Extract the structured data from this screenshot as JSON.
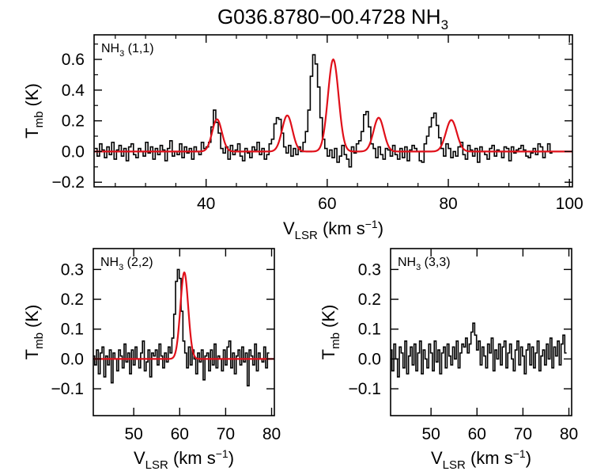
{
  "figure": {
    "title_main": "G036.8780−00.4728 NH",
    "title_sub": "3"
  },
  "chart_data": [
    {
      "type": "line",
      "panel_label": {
        "main": "NH",
        "sub": "3",
        "rest": " (1,1)"
      },
      "xlabel": {
        "main": "V",
        "sub": "LSR",
        "rest": " (km s",
        "sup": "−1",
        "end": ")"
      },
      "ylabel": {
        "main": "T",
        "sub": "mb",
        "rest": " (K)"
      },
      "xlim": [
        21.5,
        100.5
      ],
      "ylim": [
        -0.23,
        0.76
      ],
      "xticks": [
        40,
        60,
        80,
        100
      ],
      "xtick_labels": [
        "40",
        "60",
        "80",
        "100"
      ],
      "yticks": [
        -0.2,
        0.0,
        0.2,
        0.4,
        0.6
      ],
      "ytick_labels": [
        "−0.2",
        "0.0",
        "0.2",
        "0.4",
        "0.6"
      ],
      "minor_x": [
        25,
        30,
        35,
        45,
        50,
        55,
        65,
        70,
        75,
        85,
        90,
        95
      ],
      "minor_y": [
        -0.1,
        0.1,
        0.3,
        0.5,
        0.7
      ],
      "series": [
        {
          "name": "observed spectrum",
          "color": "#000000",
          "style": "step",
          "x0": 21.8,
          "dx": 0.4,
          "values": [
            0.02,
            -0.03,
            0.05,
            0.01,
            -0.04,
            0.03,
            -0.02,
            0.06,
            -0.05,
            0.01,
            0.04,
            -0.03,
            0.02,
            -0.06,
            0.03,
            0.05,
            -0.02,
            -0.04,
            0.02,
            0.0,
            -0.03,
            0.06,
            -0.01,
            0.03,
            -0.05,
            0.02,
            -0.02,
            0.04,
            0.01,
            -0.06,
            0.02,
            0.07,
            -0.03,
            0.0,
            -0.02,
            0.05,
            -0.04,
            0.03,
            -0.01,
            0.02,
            -0.05,
            0.03,
            0.0,
            -0.02,
            0.06,
            0.02,
            0.03,
            0.06,
            0.16,
            0.27,
            0.19,
            0.12,
            0.02,
            -0.01,
            0.03,
            -0.05,
            0.04,
            -0.02,
            0.01,
            0.05,
            -0.03,
            -0.06,
            0.02,
            -0.01,
            -0.04,
            0.03,
            0.01,
            0.06,
            -0.02,
            0.02,
            -0.05,
            -0.02,
            0.05,
            0.08,
            0.18,
            0.22,
            0.21,
            0.12,
            0.03,
            -0.01,
            0.04,
            -0.03,
            0.02,
            -0.02,
            0.03,
            0.0,
            0.06,
            0.13,
            0.27,
            0.49,
            0.63,
            0.57,
            0.42,
            0.22,
            0.08,
            0.02,
            -0.03,
            0.01,
            -0.04,
            0.02,
            -0.07,
            -0.03,
            0.04,
            -0.02,
            -0.05,
            -0.1,
            0.03,
            -0.01,
            0.05,
            0.07,
            0.13,
            0.24,
            0.26,
            0.16,
            0.05,
            0.02,
            -0.04,
            0.03,
            -0.02,
            -0.05,
            0.02,
            0.01,
            -0.03,
            0.04,
            -0.02,
            -0.05,
            0.02,
            -0.04,
            0.03,
            -0.06,
            0.01,
            0.04,
            0.02,
            0.0,
            -0.06,
            -0.07,
            0.05,
            0.1,
            0.16,
            0.22,
            0.25,
            0.17,
            0.09,
            0.02,
            -0.03,
            0.05,
            0.02,
            -0.04,
            0.0,
            -0.03,
            0.03,
            0.06,
            -0.02,
            -0.05,
            0.04,
            0.01,
            -0.03,
            0.02,
            -0.07,
            0.03,
            0.0,
            -0.02,
            -0.05,
            0.02,
            0.04,
            -0.03,
            0.01,
            0.0,
            -0.04,
            0.03,
            0.02,
            -0.06,
            0.03,
            -0.01,
            0.01,
            0.02,
            0.04,
            0.01,
            -0.03,
            -0.04,
            -0.01,
            0.02,
            -0.02,
            0.05,
            0.03,
            -0.04,
            0.0,
            0.05,
            -0.01
          ]
        },
        {
          "name": "hyperfine fit",
          "color": "#e0101a",
          "style": "gauss",
          "components": [
            [
              41.8,
              0.21,
              0.8
            ],
            [
              53.4,
              0.235,
              0.85
            ],
            [
              61.0,
              0.6,
              0.88
            ],
            [
              68.5,
              0.22,
              0.85
            ],
            [
              80.5,
              0.205,
              0.9
            ]
          ]
        }
      ]
    },
    {
      "type": "line",
      "panel_label": {
        "main": "NH",
        "sub": "3",
        "rest": " (2,2)"
      },
      "xlabel": {
        "main": "V",
        "sub": "LSR",
        "rest": " (km s",
        "sup": "−1",
        "end": ")"
      },
      "ylabel": {
        "main": "T",
        "sub": "mb",
        "rest": " (K)"
      },
      "xlim": [
        41.2,
        80.6
      ],
      "ylim": [
        -0.19,
        0.37
      ],
      "xticks": [
        50,
        60,
        70,
        80
      ],
      "xtick_labels": [
        "50",
        "60",
        "70",
        "80"
      ],
      "yticks": [
        -0.1,
        0.0,
        0.1,
        0.2,
        0.3
      ],
      "ytick_labels": [
        "−0.1",
        "0.0",
        "0.1",
        "0.2",
        "0.3"
      ],
      "series": [
        {
          "name": "observed spectrum",
          "color": "#000000",
          "style": "step",
          "x0": 41.3,
          "dx": 0.4,
          "values": [
            0.01,
            -0.02,
            0.03,
            -0.05,
            0.02,
            0.04,
            -0.06,
            0.01,
            -0.02,
            0.03,
            -0.08,
            0.02,
            0.0,
            -0.04,
            0.03,
            0.01,
            -0.03,
            0.05,
            -0.01,
            0.02,
            -0.05,
            0.03,
            -0.02,
            0.04,
            0.0,
            -0.03,
            0.02,
            0.06,
            -0.04,
            -0.01,
            0.03,
            -0.06,
            0.02,
            0.01,
            0.03,
            -0.02,
            0.05,
            0.01,
            -0.03,
            0.02,
            -0.01,
            0.04,
            0.02,
            0.07,
            0.15,
            0.26,
            0.3,
            0.27,
            0.16,
            0.06,
            0.02,
            -0.03,
            0.04,
            -0.02,
            0.03,
            0.0,
            -0.05,
            0.02,
            -0.01,
            0.03,
            -0.07,
            0.01,
            0.02,
            -0.04,
            0.03,
            -0.02,
            0.05,
            -0.03,
            0.01,
            0.0,
            -0.04,
            0.03,
            -0.02,
            0.04,
            0.06,
            -0.03,
            0.02,
            -0.05,
            0.01,
            0.03,
            -0.02,
            0.04,
            -0.01,
            0.02,
            -0.09,
            0.03,
            0.01,
            -0.02,
            0.05,
            -0.04,
            0.02,
            0.0,
            -0.01,
            0.04,
            -0.03,
            0.02
          ]
        },
        {
          "name": "gaussian fit",
          "color": "#e0101a",
          "style": "gauss",
          "components": [
            [
              61.0,
              0.29,
              0.85
            ]
          ]
        }
      ]
    },
    {
      "type": "line",
      "panel_label": {
        "main": "NH",
        "sub": "3",
        "rest": " (3,3)"
      },
      "xlabel": {
        "main": "V",
        "sub": "LSR",
        "rest": " (km s",
        "sup": "−1",
        "end": ")"
      },
      "ylabel": {
        "main": "T",
        "sub": "mb",
        "rest": " (K)"
      },
      "xlim": [
        41.2,
        80.6
      ],
      "ylim": [
        -0.19,
        0.37
      ],
      "xticks": [
        50,
        60,
        70,
        80
      ],
      "xtick_labels": [
        "50",
        "60",
        "70",
        "80"
      ],
      "yticks": [
        -0.1,
        0.0,
        0.1,
        0.2,
        0.3
      ],
      "ytick_labels": [
        "−0.1",
        "0.0",
        "0.1",
        "0.2",
        "0.3"
      ],
      "series": [
        {
          "name": "observed spectrum",
          "color": "#000000",
          "style": "step",
          "x0": 41.3,
          "dx": 0.4,
          "values": [
            0.03,
            -0.04,
            0.05,
            0.0,
            -0.06,
            0.04,
            0.02,
            -0.03,
            0.06,
            -0.05,
            0.01,
            0.04,
            -0.02,
            0.05,
            -0.04,
            0.02,
            0.06,
            -0.05,
            0.03,
            0.0,
            -0.03,
            0.05,
            0.02,
            -0.04,
            0.06,
            -0.01,
            0.03,
            -0.05,
            0.02,
            0.04,
            -0.03,
            0.05,
            0.01,
            -0.02,
            0.04,
            0.0,
            0.06,
            -0.03,
            0.02,
            0.05,
            0.04,
            0.07,
            0.02,
            0.05,
            0.09,
            0.12,
            0.08,
            0.03,
            0.06,
            -0.02,
            0.04,
            0.01,
            -0.03,
            0.05,
            0.02,
            0.07,
            -0.04,
            0.03,
            0.0,
            0.05,
            -0.02,
            0.04,
            0.06,
            -0.03,
            0.02,
            0.05,
            0.0,
            -0.04,
            0.03,
            0.06,
            -0.02,
            0.04,
            0.01,
            -0.05,
            0.03,
            0.05,
            -0.02,
            0.04,
            -0.03,
            0.02,
            0.06,
            -0.04,
            0.01,
            0.03,
            -0.02,
            0.05,
            0.0,
            0.07,
            -0.03,
            0.04,
            0.01,
            0.06,
            -0.02,
            0.05,
            0.08,
            0.02
          ]
        }
      ]
    }
  ]
}
